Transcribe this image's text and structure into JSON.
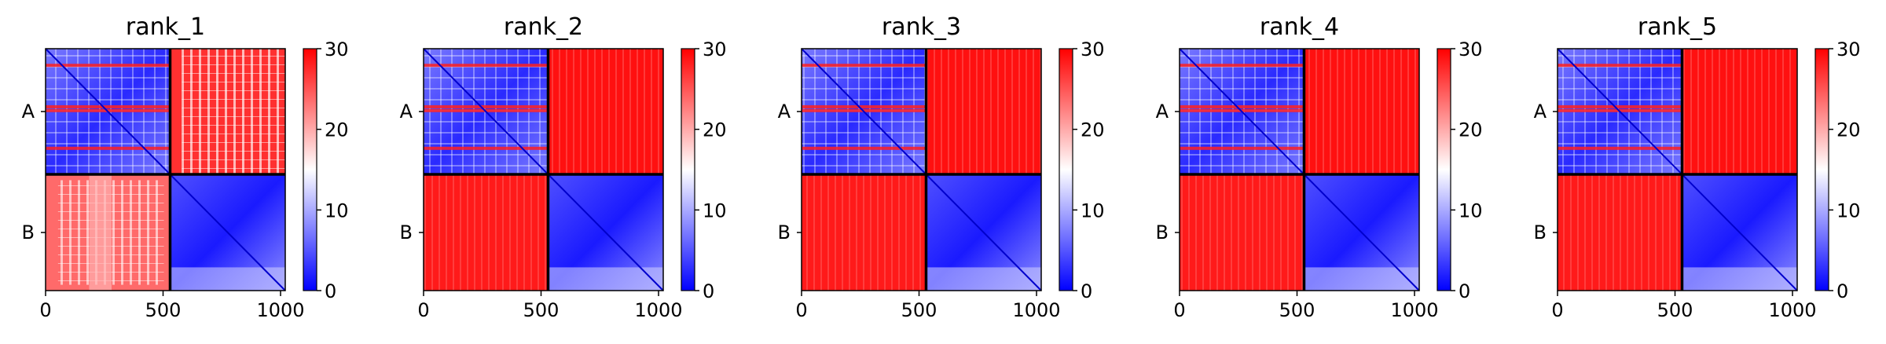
{
  "chart_data": [
    {
      "type": "heatmap",
      "title": "rank_1",
      "chains": [
        "A",
        "B"
      ],
      "chain_boundary": 530,
      "xlim": [
        0,
        1020
      ],
      "xticks": [
        0,
        500,
        1000
      ],
      "colorbar": {
        "min": 0,
        "max": 30,
        "ticks": [
          0,
          10,
          20,
          30
        ]
      },
      "colormap": [
        "#0000ff",
        "#ffffff",
        "#ff0000"
      ],
      "off_diagonal_level": "mixed"
    },
    {
      "type": "heatmap",
      "title": "rank_2",
      "chains": [
        "A",
        "B"
      ],
      "chain_boundary": 530,
      "xlim": [
        0,
        1020
      ],
      "xticks": [
        0,
        500,
        1000
      ],
      "colorbar": {
        "min": 0,
        "max": 30,
        "ticks": [
          0,
          10,
          20,
          30
        ]
      },
      "colormap": [
        "#0000ff",
        "#ffffff",
        "#ff0000"
      ],
      "off_diagonal_level": "high"
    },
    {
      "type": "heatmap",
      "title": "rank_3",
      "chains": [
        "A",
        "B"
      ],
      "chain_boundary": 530,
      "xlim": [
        0,
        1020
      ],
      "xticks": [
        0,
        500,
        1000
      ],
      "colorbar": {
        "min": 0,
        "max": 30,
        "ticks": [
          0,
          10,
          20,
          30
        ]
      },
      "colormap": [
        "#0000ff",
        "#ffffff",
        "#ff0000"
      ],
      "off_diagonal_level": "high"
    },
    {
      "type": "heatmap",
      "title": "rank_4",
      "chains": [
        "A",
        "B"
      ],
      "chain_boundary": 530,
      "xlim": [
        0,
        1020
      ],
      "xticks": [
        0,
        500,
        1000
      ],
      "colorbar": {
        "min": 0,
        "max": 30,
        "ticks": [
          0,
          10,
          20,
          30
        ]
      },
      "colormap": [
        "#0000ff",
        "#ffffff",
        "#ff0000"
      ],
      "off_diagonal_level": "high"
    },
    {
      "type": "heatmap",
      "title": "rank_5",
      "chains": [
        "A",
        "B"
      ],
      "chain_boundary": 530,
      "xlim": [
        0,
        1020
      ],
      "xticks": [
        0,
        500,
        1000
      ],
      "colorbar": {
        "min": 0,
        "max": 30,
        "ticks": [
          0,
          10,
          20,
          30
        ]
      },
      "colormap": [
        "#0000ff",
        "#ffffff",
        "#ff0000"
      ],
      "off_diagonal_level": "high"
    }
  ]
}
